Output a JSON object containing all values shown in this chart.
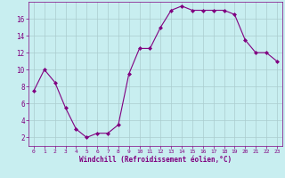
{
  "x": [
    0,
    1,
    2,
    3,
    4,
    5,
    6,
    7,
    8,
    9,
    10,
    11,
    12,
    13,
    14,
    15,
    16,
    17,
    18,
    19,
    20,
    21,
    22,
    23
  ],
  "y": [
    7.5,
    10,
    8.5,
    5.5,
    3,
    2,
    2.5,
    2.5,
    3.5,
    9.5,
    12.5,
    12.5,
    15,
    17,
    17.5,
    17,
    17,
    17,
    17,
    16.5,
    13.5,
    12,
    12,
    11
  ],
  "line_color": "#800080",
  "marker": "D",
  "marker_size": 2,
  "bg_color": "#c8eef0",
  "grid_color": "#aaccce",
  "xlabel": "Windchill (Refroidissement éolien,°C)",
  "xlabel_color": "#800080",
  "tick_color": "#800080",
  "ylim": [
    1,
    18
  ],
  "xlim": [
    -0.5,
    23.5
  ],
  "yticks": [
    2,
    4,
    6,
    8,
    10,
    12,
    14,
    16
  ],
  "xticks": [
    0,
    1,
    2,
    3,
    4,
    5,
    6,
    7,
    8,
    9,
    10,
    11,
    12,
    13,
    14,
    15,
    16,
    17,
    18,
    19,
    20,
    21,
    22,
    23
  ],
  "xlabel_fontsize": 5.5,
  "xtick_fontsize": 4.5,
  "ytick_fontsize": 5.5
}
